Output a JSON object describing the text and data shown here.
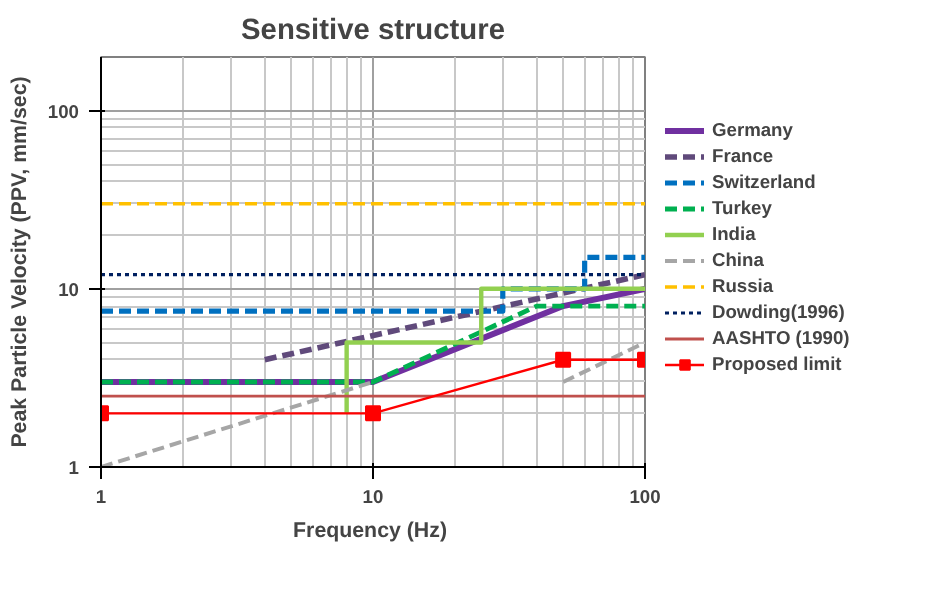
{
  "chart_data": {
    "type": "line",
    "title": "Sensitive structure",
    "xlabel": "Frequency  (Hz)",
    "ylabel": "Peak Particle Velocity (PPV, mm/sec)",
    "log": "xy",
    "xlim": [
      1,
      100
    ],
    "ylim": [
      1,
      200
    ],
    "xticks": [
      1,
      10,
      100
    ],
    "yticks": [
      1,
      10,
      100
    ],
    "grid": true,
    "legend": "right",
    "series": [
      {
        "name": "Germany",
        "color": "#7030a0",
        "line_style": "solid",
        "x": [
          1,
          10,
          50,
          100
        ],
        "values": [
          3,
          3,
          8,
          10
        ]
      },
      {
        "name": "France",
        "color": "#604a7b",
        "line_style": "dashed",
        "x": [
          4,
          100
        ],
        "values": [
          4,
          12
        ]
      },
      {
        "name": "Switzerland",
        "color": "#0070c0",
        "line_style": "dashed",
        "x": [
          1,
          30,
          30,
          60,
          60,
          100
        ],
        "values": [
          7.5,
          7.5,
          10,
          10,
          15,
          15
        ]
      },
      {
        "name": "Turkey",
        "color": "#00b050",
        "line_style": "dashed",
        "x": [
          1,
          10,
          40,
          100
        ],
        "values": [
          3,
          3,
          8,
          8
        ]
      },
      {
        "name": "India",
        "color": "#92d050",
        "line_style": "solid",
        "x": [
          8,
          8,
          25,
          25,
          100
        ],
        "values": [
          2,
          5,
          5,
          10,
          10
        ]
      },
      {
        "name": "China",
        "color": "#a6a6a6",
        "line_style": "dashed",
        "x": [
          1,
          10,
          30,
          50,
          100
        ],
        "values": [
          1,
          3,
          null,
          3,
          5
        ]
      },
      {
        "name": "Russia",
        "color": "#ffc000",
        "line_style": "dashed",
        "x": [
          1,
          100
        ],
        "values": [
          30,
          30
        ]
      },
      {
        "name": "Dowding(1996)",
        "color": "#002060",
        "line_style": "dotted",
        "x": [
          1,
          100
        ],
        "values": [
          12,
          12
        ]
      },
      {
        "name": "AASHTO (1990)",
        "color": "#c0504d",
        "line_style": "solid",
        "x": [
          1,
          100
        ],
        "values": [
          2.5,
          2.5
        ]
      },
      {
        "name": "Proposed limit",
        "color": "#ff0000",
        "line_style": "solid",
        "marker": "square",
        "x": [
          1,
          10,
          50,
          100
        ],
        "values": [
          2,
          2,
          4,
          4
        ]
      }
    ]
  }
}
